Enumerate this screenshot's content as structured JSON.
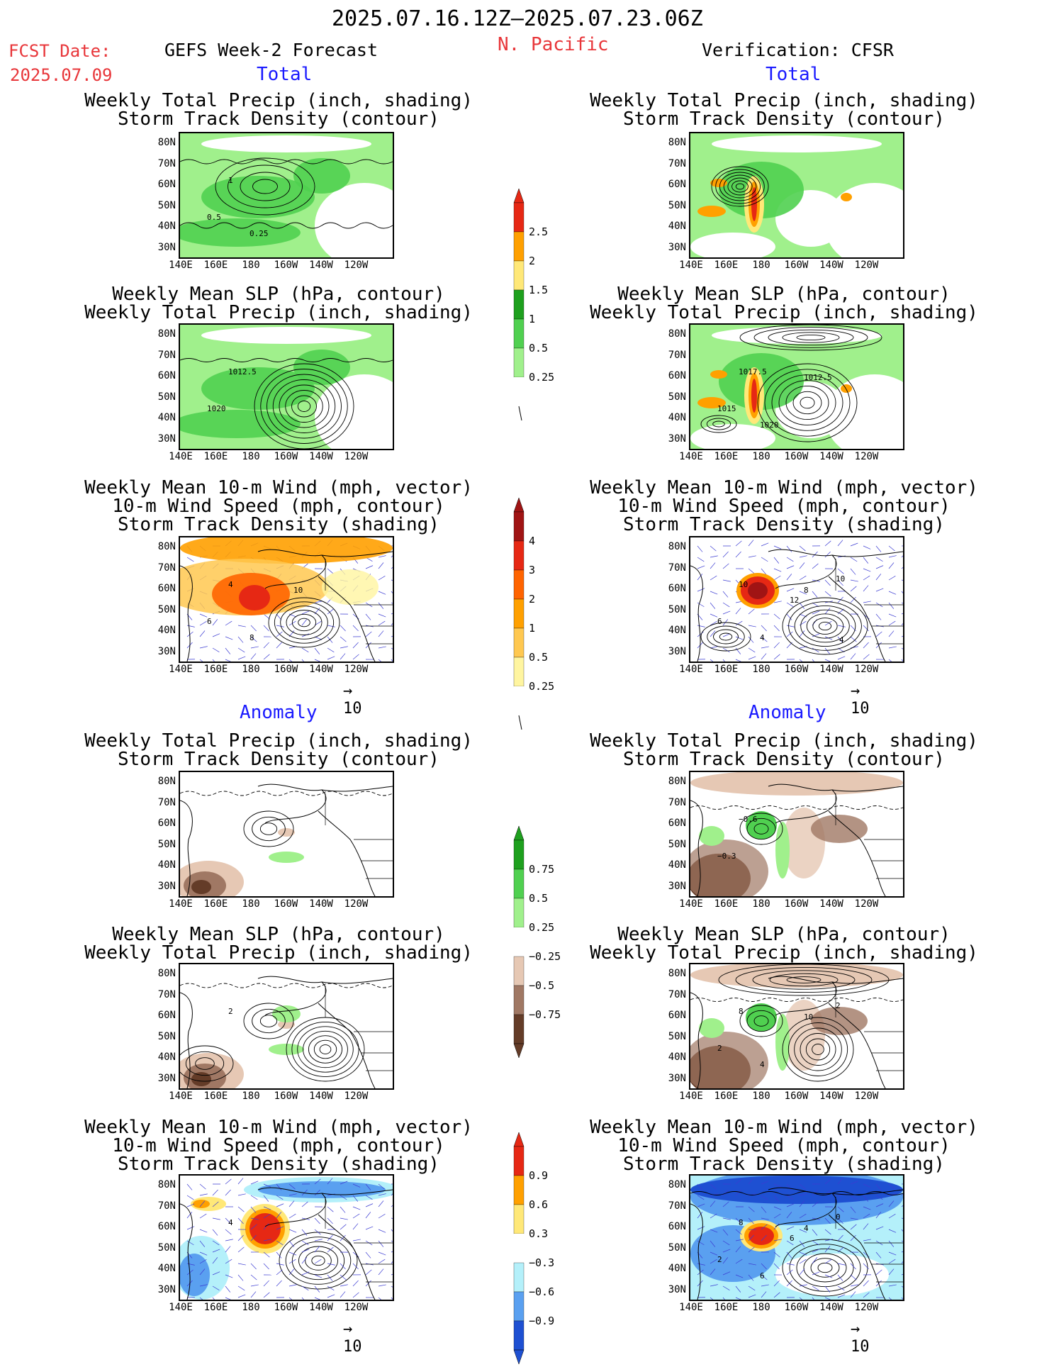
{
  "header": {
    "date_range": "2025.07.16.12Z–2025.07.23.06Z",
    "fcst_label": "FCST Date:",
    "fcst_date": "2025.07.09",
    "left_title": "GEFS Week-2 Forecast",
    "region": "N. Pacific",
    "right_title": "Verification: CFSR"
  },
  "sections": {
    "total": "Total",
    "anomaly": "Anomaly"
  },
  "panel_titles": {
    "precip_storm": [
      "Weekly Total Precip (inch, shading)",
      "Storm Track Density (contour)"
    ],
    "slp_precip": [
      "Weekly Mean SLP (hPa, contour)",
      "Weekly Total Precip (inch, shading)"
    ],
    "wind_storm": [
      "Weekly Mean 10-m Wind (mph, vector)",
      "10-m Wind Speed (mph, contour)",
      "Storm Track Density (shading)"
    ]
  },
  "axes": {
    "lat": [
      "80N",
      "70N",
      "60N",
      "50N",
      "40N",
      "30N"
    ],
    "lon": [
      "140E",
      "160E",
      "180",
      "160W",
      "140W",
      "120W"
    ]
  },
  "vector_ref": "10",
  "colorbars": {
    "total_precip": [
      "2.5",
      "2",
      "1.5",
      "1",
      "0.5",
      "0.25"
    ],
    "total_storm": [
      "4",
      "3",
      "2",
      "1",
      "0.5",
      "0.25"
    ],
    "anom_precip": [
      "0.75",
      "0.5",
      "0.25",
      "−0.25",
      "−0.5",
      "−0.75"
    ],
    "anom_storm": [
      "0.9",
      "0.6",
      "0.3",
      "−0.3",
      "−0.6",
      "−0.9"
    ]
  },
  "contour_labels": {
    "fcst_total_precip": [
      "1",
      "0.5",
      "0.25"
    ],
    "fcst_total_slp": [
      "1012.5",
      "1020"
    ],
    "fcst_total_wind": [
      "4",
      "6",
      "8",
      "10"
    ],
    "verif_total_slp": [
      "1017.5",
      "1015",
      "1020",
      "1012.5"
    ],
    "verif_total_wind": [
      "10",
      "6",
      "4",
      "8",
      "10",
      "12",
      "4"
    ],
    "verif_anom_precip": [
      "−0.6",
      "−0.3"
    ],
    "fcst_anom_slp": [
      "2"
    ],
    "verif_anom_slp": [
      "8",
      "2",
      "4",
      "10",
      "2"
    ],
    "fcst_anom_wind": [
      "4"
    ],
    "verif_anom_wind": [
      "8",
      "2",
      "6",
      "4",
      "0",
      "6"
    ]
  },
  "colors": {
    "red_text": "#e8363a",
    "blue_text": "#1a1aff",
    "precip_light": "#a0f08c",
    "precip_mid": "#50d050",
    "precip_dark": "#1ea01e",
    "precip_yellow": "#ffe878",
    "precip_orange": "#ffa000",
    "precip_red": "#e62814",
    "dry_1": "#e6c8b4",
    "dry_2": "#a07864",
    "dry_3": "#643c28",
    "cold_1": "#b4f0fa",
    "cold_2": "#5aa0f0",
    "cold_3": "#1e50d2"
  }
}
